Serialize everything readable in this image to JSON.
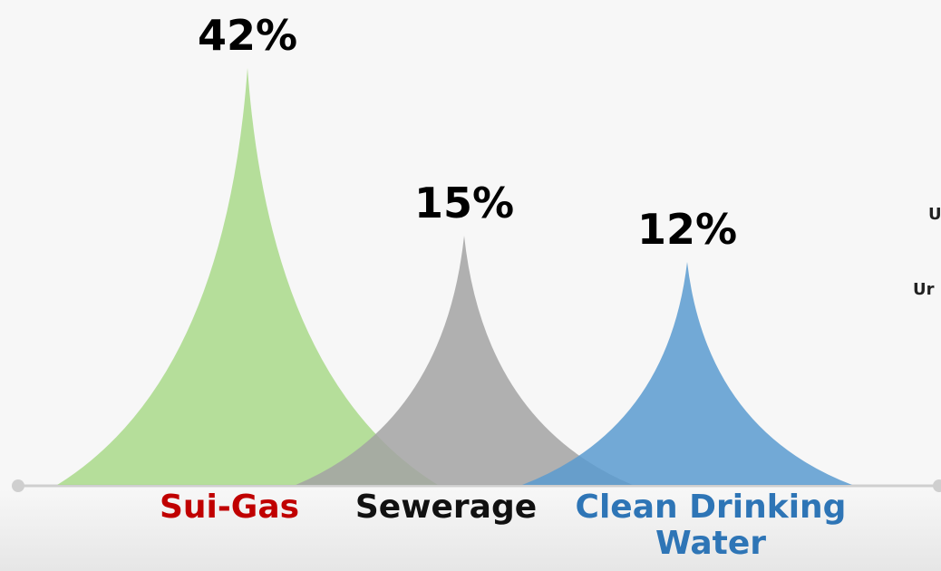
{
  "chart_data": {
    "type": "peak",
    "categories": [
      "Sui-Gas",
      "Sewerage",
      "Clean Drinking Water"
    ],
    "values": [
      42,
      15,
      12
    ],
    "value_labels": [
      "42%",
      "15%",
      "12%"
    ],
    "colors": [
      "#a9d98a",
      "#a3a3a3",
      "#5b9bd0"
    ],
    "label_colors": [
      "#c00000",
      "#111111",
      "#2e75b6"
    ],
    "annotations": [
      "U",
      "Ur"
    ]
  }
}
